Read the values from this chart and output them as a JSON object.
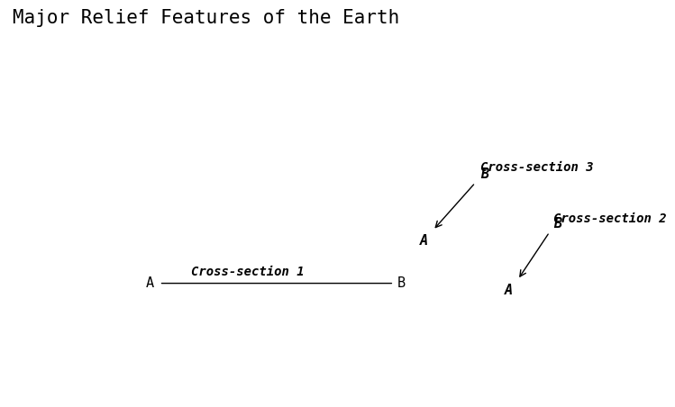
{
  "title": "Major Relief Features of the Earth",
  "title_fontsize": 15,
  "title_font": "monospace",
  "background_color": "#ffffff",
  "map_face_color": "#ffffff",
  "map_edge_color": "#000000",
  "map_linewidth": 0.6,
  "cross_section_1": {
    "label": "Cross-section 1",
    "lon_a": -95,
    "lon_b": 38,
    "lat": -10,
    "label_lon": -45,
    "label_lat": -7
  },
  "cross_section_3": {
    "label": "Cross-section 3",
    "label_lon": 87,
    "label_lat": 52,
    "B_lon": 84,
    "B_lat": 47,
    "A_lon": 60,
    "A_lat": 20,
    "B_text_lon": 87,
    "B_text_lat": 48,
    "A_text_lon": 57,
    "A_text_lat": 18
  },
  "cross_section_2": {
    "label": "Cross-section 2",
    "label_lon": 128,
    "label_lat": 23,
    "B_lon": 126,
    "B_lat": 19,
    "A_lon": 108,
    "A_lat": -8,
    "B_text_lon": 128,
    "B_text_lat": 20,
    "A_text_lon": 105,
    "A_text_lat": -10
  },
  "line_color": "#000000",
  "line_width": 1.0,
  "label_fontsize": 10,
  "label_font": "monospace",
  "AB_fontsize": 11,
  "AB_font": "monospace",
  "map_xlim": [
    -180,
    180
  ],
  "map_ylim": [
    -75,
    85
  ]
}
